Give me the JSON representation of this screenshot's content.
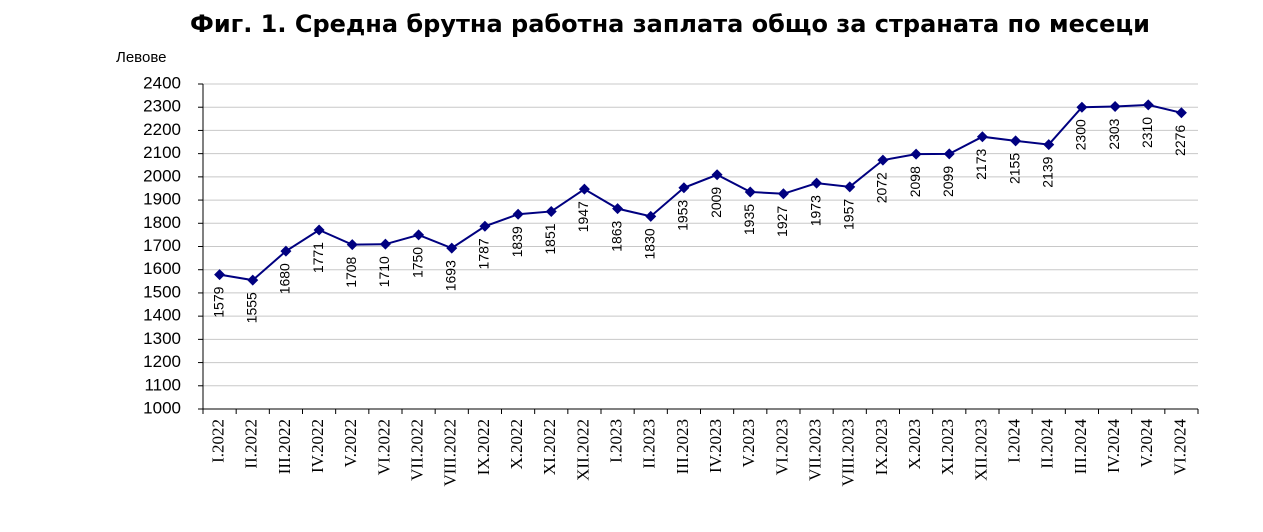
{
  "chart_data": {
    "type": "line",
    "title": "Фиг. 1. Средна брутна работна заплата общо за страната по месеци",
    "y_label": "Левове",
    "categories": [
      "I.2022",
      "II.2022",
      "III.2022",
      "IV.2022",
      "V.2022",
      "VI.2022",
      "VII.2022",
      "VIII.2022",
      "IX.2022",
      "X.2022",
      "XI.2022",
      "XII.2022",
      "I.2023",
      "II.2023",
      "III.2023",
      "IV.2023",
      "V.2023",
      "VI.2023",
      "VII.2023",
      "VIII.2023",
      "IX.2023",
      "X.2023",
      "XI.2023",
      "XII.2023",
      "I.2024",
      "II.2024",
      "III.2024",
      "IV.2024",
      "V.2024",
      "VI.2024"
    ],
    "values": [
      1579,
      1555,
      1680,
      1771,
      1708,
      1710,
      1750,
      1693,
      1787,
      1839,
      1851,
      1947,
      1863,
      1830,
      1953,
      2009,
      1935,
      1927,
      1973,
      1957,
      2072,
      2098,
      2099,
      2173,
      2155,
      2139,
      2300,
      2303,
      2310,
      2276
    ],
    "color": "#000080",
    "ylim": [
      1000,
      2400
    ],
    "yticks": [
      1000,
      1100,
      1200,
      1300,
      1400,
      1500,
      1600,
      1700,
      1800,
      1900,
      2000,
      2100,
      2200,
      2300,
      2400
    ],
    "grid": true
  }
}
